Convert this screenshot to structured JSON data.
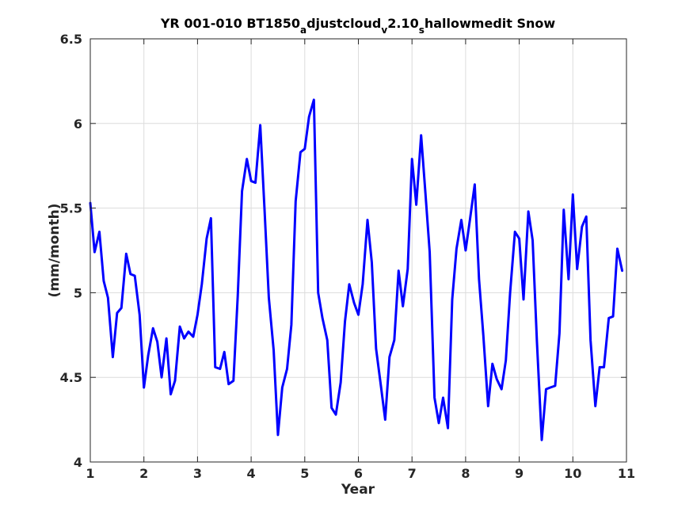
{
  "chart_data": {
    "type": "line",
    "title": "YR 001-010 BT1850_adjustcloud_v2.10_shallowmedit Snow",
    "title_parts": [
      {
        "text": "YR 001-010 BT1850",
        "sub": false
      },
      {
        "text": "a",
        "sub": true
      },
      {
        "text": "djustcloud",
        "sub": false
      },
      {
        "text": "v",
        "sub": true
      },
      {
        "text": "2.10",
        "sub": false
      },
      {
        "text": "s",
        "sub": true
      },
      {
        "text": "hallowmedit Snow",
        "sub": false
      }
    ],
    "xlabel": "Year",
    "ylabel": "(mm/month)",
    "xlim": [
      1,
      11
    ],
    "ylim": [
      4,
      6.5
    ],
    "xticks": [
      "1",
      "2",
      "3",
      "4",
      "5",
      "6",
      "7",
      "8",
      "9",
      "10",
      "11"
    ],
    "yticks": [
      "4",
      "4.5",
      "5",
      "5.5",
      "6",
      "6.5"
    ],
    "grid": true,
    "line_color": "#0000ff",
    "series": [
      {
        "values": [
          [
            1.0,
            5.53
          ],
          [
            1.08,
            5.24
          ],
          [
            1.17,
            5.36
          ],
          [
            1.25,
            5.07
          ],
          [
            1.33,
            4.97
          ],
          [
            1.42,
            4.62
          ],
          [
            1.5,
            4.88
          ],
          [
            1.58,
            4.91
          ],
          [
            1.67,
            5.23
          ],
          [
            1.75,
            5.11
          ],
          [
            1.83,
            5.1
          ],
          [
            1.92,
            4.87
          ],
          [
            2.0,
            4.44
          ],
          [
            2.08,
            4.63
          ],
          [
            2.17,
            4.79
          ],
          [
            2.25,
            4.71
          ],
          [
            2.33,
            4.5
          ],
          [
            2.42,
            4.73
          ],
          [
            2.5,
            4.4
          ],
          [
            2.58,
            4.48
          ],
          [
            2.67,
            4.8
          ],
          [
            2.75,
            4.73
          ],
          [
            2.83,
            4.77
          ],
          [
            2.92,
            4.74
          ],
          [
            3.0,
            4.87
          ],
          [
            3.08,
            5.05
          ],
          [
            3.17,
            5.32
          ],
          [
            3.25,
            5.44
          ],
          [
            3.33,
            4.56
          ],
          [
            3.42,
            4.55
          ],
          [
            3.5,
            4.65
          ],
          [
            3.58,
            4.46
          ],
          [
            3.67,
            4.48
          ],
          [
            3.75,
            4.98
          ],
          [
            3.83,
            5.6
          ],
          [
            3.92,
            5.79
          ],
          [
            4.0,
            5.66
          ],
          [
            4.08,
            5.65
          ],
          [
            4.17,
            5.99
          ],
          [
            4.25,
            5.49
          ],
          [
            4.33,
            4.97
          ],
          [
            4.42,
            4.66
          ],
          [
            4.5,
            4.16
          ],
          [
            4.58,
            4.44
          ],
          [
            4.67,
            4.55
          ],
          [
            4.75,
            4.81
          ],
          [
            4.83,
            5.54
          ],
          [
            4.92,
            5.83
          ],
          [
            5.0,
            5.85
          ],
          [
            5.08,
            6.04
          ],
          [
            5.17,
            6.14
          ],
          [
            5.25,
            5.0
          ],
          [
            5.33,
            4.85
          ],
          [
            5.42,
            4.72
          ],
          [
            5.5,
            4.32
          ],
          [
            5.58,
            4.28
          ],
          [
            5.67,
            4.47
          ],
          [
            5.75,
            4.83
          ],
          [
            5.83,
            5.05
          ],
          [
            5.92,
            4.94
          ],
          [
            6.0,
            4.87
          ],
          [
            6.08,
            5.05
          ],
          [
            6.17,
            5.43
          ],
          [
            6.25,
            5.18
          ],
          [
            6.33,
            4.67
          ],
          [
            6.42,
            4.45
          ],
          [
            6.5,
            4.25
          ],
          [
            6.58,
            4.62
          ],
          [
            6.67,
            4.72
          ],
          [
            6.75,
            5.13
          ],
          [
            6.83,
            4.92
          ],
          [
            6.92,
            5.14
          ],
          [
            7.0,
            5.79
          ],
          [
            7.08,
            5.52
          ],
          [
            7.17,
            5.93
          ],
          [
            7.25,
            5.59
          ],
          [
            7.33,
            5.24
          ],
          [
            7.42,
            4.38
          ],
          [
            7.5,
            4.23
          ],
          [
            7.58,
            4.38
          ],
          [
            7.67,
            4.2
          ],
          [
            7.75,
            4.96
          ],
          [
            7.83,
            5.26
          ],
          [
            7.92,
            5.43
          ],
          [
            8.0,
            5.25
          ],
          [
            8.08,
            5.43
          ],
          [
            8.17,
            5.64
          ],
          [
            8.25,
            5.08
          ],
          [
            8.33,
            4.75
          ],
          [
            8.42,
            4.33
          ],
          [
            8.5,
            4.58
          ],
          [
            8.58,
            4.49
          ],
          [
            8.67,
            4.43
          ],
          [
            8.75,
            4.6
          ],
          [
            8.83,
            5.0
          ],
          [
            8.92,
            5.36
          ],
          [
            9.0,
            5.32
          ],
          [
            9.08,
            4.96
          ],
          [
            9.17,
            5.48
          ],
          [
            9.25,
            5.31
          ],
          [
            9.33,
            4.71
          ],
          [
            9.42,
            4.13
          ],
          [
            9.5,
            4.43
          ],
          [
            9.58,
            4.44
          ],
          [
            9.67,
            4.45
          ],
          [
            9.75,
            4.76
          ],
          [
            9.83,
            5.49
          ],
          [
            9.92,
            5.08
          ],
          [
            10.0,
            5.58
          ],
          [
            10.08,
            5.14
          ],
          [
            10.17,
            5.39
          ],
          [
            10.25,
            5.45
          ],
          [
            10.33,
            4.72
          ],
          [
            10.42,
            4.33
          ],
          [
            10.5,
            4.56
          ],
          [
            10.58,
            4.56
          ],
          [
            10.67,
            4.85
          ],
          [
            10.75,
            4.86
          ],
          [
            10.83,
            5.26
          ],
          [
            10.92,
            5.13
          ]
        ]
      }
    ]
  }
}
